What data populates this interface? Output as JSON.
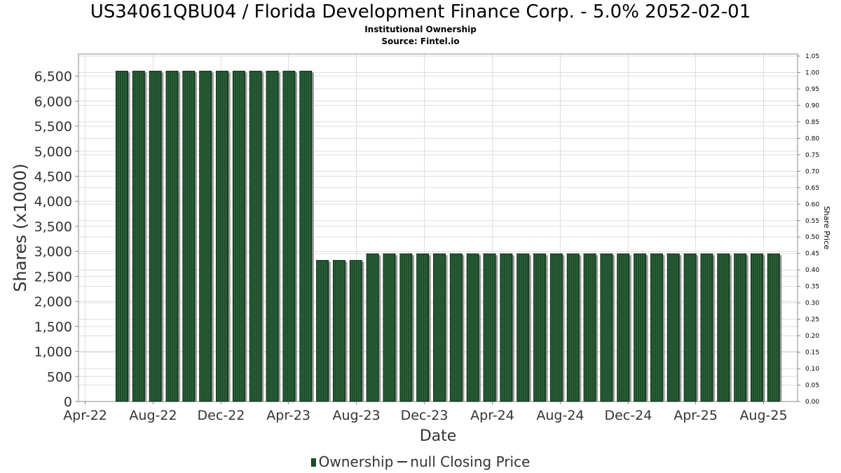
{
  "title": "US34061QBU04 / Florida Development Finance Corp. - 5.0% 2052-02-01",
  "subtitle": "Institutional Ownership",
  "source": "Source: Fintel.io",
  "legend": {
    "ownership": "Ownership",
    "price": "null Closing Price"
  },
  "colors": {
    "bar": "#1e4d2b",
    "bar_stripe": "#2f6b3d",
    "bar_shadow": "#9a9a9a",
    "grid": "#dddddd",
    "axis": "#888888"
  },
  "chart_data": {
    "type": "bar",
    "title": "US34061QBU04 / Florida Development Finance Corp. - 5.0% 2052-02-01",
    "subtitle": "Institutional Ownership",
    "xlabel": "Date",
    "ylabel": "Shares (x1000)",
    "y2label": "Share Price",
    "ylim": [
      0,
      6900
    ],
    "y2lim": [
      0,
      1.05
    ],
    "xlim": [
      "2022-03-20",
      "2025-10-01"
    ],
    "yticks": [
      0,
      500,
      1000,
      1500,
      2000,
      2500,
      3000,
      3500,
      4000,
      4500,
      5000,
      5500,
      6000,
      6500
    ],
    "ytick_labels": [
      "0",
      "500",
      "1,000",
      "1,500",
      "2,000",
      "2,500",
      "3,000",
      "3,500",
      "4,000",
      "4,500",
      "5,000",
      "5,500",
      "6,000",
      "6,500"
    ],
    "y2ticks": [
      "0.00",
      "0.05",
      "0.10",
      "0.15",
      "0.20",
      "0.25",
      "0.30",
      "0.35",
      "0.40",
      "0.45",
      "0.50",
      "0.55",
      "0.60",
      "0.65",
      "0.70",
      "0.75",
      "0.80",
      "0.85",
      "0.90",
      "0.95",
      "1.00",
      "1.05"
    ],
    "xticks": [
      {
        "label": "Apr-22",
        "date": "2022-04-01"
      },
      {
        "label": "Aug-22",
        "date": "2022-08-01"
      },
      {
        "label": "Dec-22",
        "date": "2022-12-01"
      },
      {
        "label": "Apr-23",
        "date": "2023-04-01"
      },
      {
        "label": "Aug-23",
        "date": "2023-08-01"
      },
      {
        "label": "Dec-23",
        "date": "2023-12-01"
      },
      {
        "label": "Apr-24",
        "date": "2024-04-01"
      },
      {
        "label": "Aug-24",
        "date": "2024-08-01"
      },
      {
        "label": "Dec-24",
        "date": "2024-12-01"
      },
      {
        "label": "Apr-25",
        "date": "2025-04-01"
      },
      {
        "label": "Aug-25",
        "date": "2025-08-01"
      }
    ],
    "grid": true,
    "legend_position": "bottom",
    "series": [
      {
        "name": "Ownership",
        "points": [
          {
            "date": "2022-06-06",
            "value": 6600
          },
          {
            "date": "2022-07-06",
            "value": 6600
          },
          {
            "date": "2022-08-05",
            "value": 6600
          },
          {
            "date": "2022-09-04",
            "value": 6600
          },
          {
            "date": "2022-10-04",
            "value": 6600
          },
          {
            "date": "2022-11-03",
            "value": 6600
          },
          {
            "date": "2022-12-03",
            "value": 6600
          },
          {
            "date": "2023-01-02",
            "value": 6600
          },
          {
            "date": "2023-02-01",
            "value": 6600
          },
          {
            "date": "2023-03-03",
            "value": 6600
          },
          {
            "date": "2023-04-02",
            "value": 6600
          },
          {
            "date": "2023-05-02",
            "value": 6600
          },
          {
            "date": "2023-06-01",
            "value": 2820
          },
          {
            "date": "2023-07-01",
            "value": 2820
          },
          {
            "date": "2023-07-31",
            "value": 2820
          },
          {
            "date": "2023-08-30",
            "value": 2950
          },
          {
            "date": "2023-09-29",
            "value": 2950
          },
          {
            "date": "2023-10-29",
            "value": 2950
          },
          {
            "date": "2023-11-28",
            "value": 2950
          },
          {
            "date": "2023-12-28",
            "value": 2950
          },
          {
            "date": "2024-01-27",
            "value": 2950
          },
          {
            "date": "2024-02-26",
            "value": 2950
          },
          {
            "date": "2024-03-27",
            "value": 2950
          },
          {
            "date": "2024-04-26",
            "value": 2950
          },
          {
            "date": "2024-05-26",
            "value": 2950
          },
          {
            "date": "2024-06-25",
            "value": 2950
          },
          {
            "date": "2024-07-25",
            "value": 2950
          },
          {
            "date": "2024-08-24",
            "value": 2950
          },
          {
            "date": "2024-09-23",
            "value": 2950
          },
          {
            "date": "2024-10-23",
            "value": 2950
          },
          {
            "date": "2024-11-22",
            "value": 2950
          },
          {
            "date": "2024-12-22",
            "value": 2950
          },
          {
            "date": "2025-01-21",
            "value": 2950
          },
          {
            "date": "2025-02-20",
            "value": 2950
          },
          {
            "date": "2025-03-22",
            "value": 2950
          },
          {
            "date": "2025-04-21",
            "value": 2950
          },
          {
            "date": "2025-05-21",
            "value": 2950
          },
          {
            "date": "2025-06-20",
            "value": 2950
          },
          {
            "date": "2025-07-20",
            "value": 2950
          },
          {
            "date": "2025-08-19",
            "value": 2950
          }
        ]
      }
    ]
  }
}
